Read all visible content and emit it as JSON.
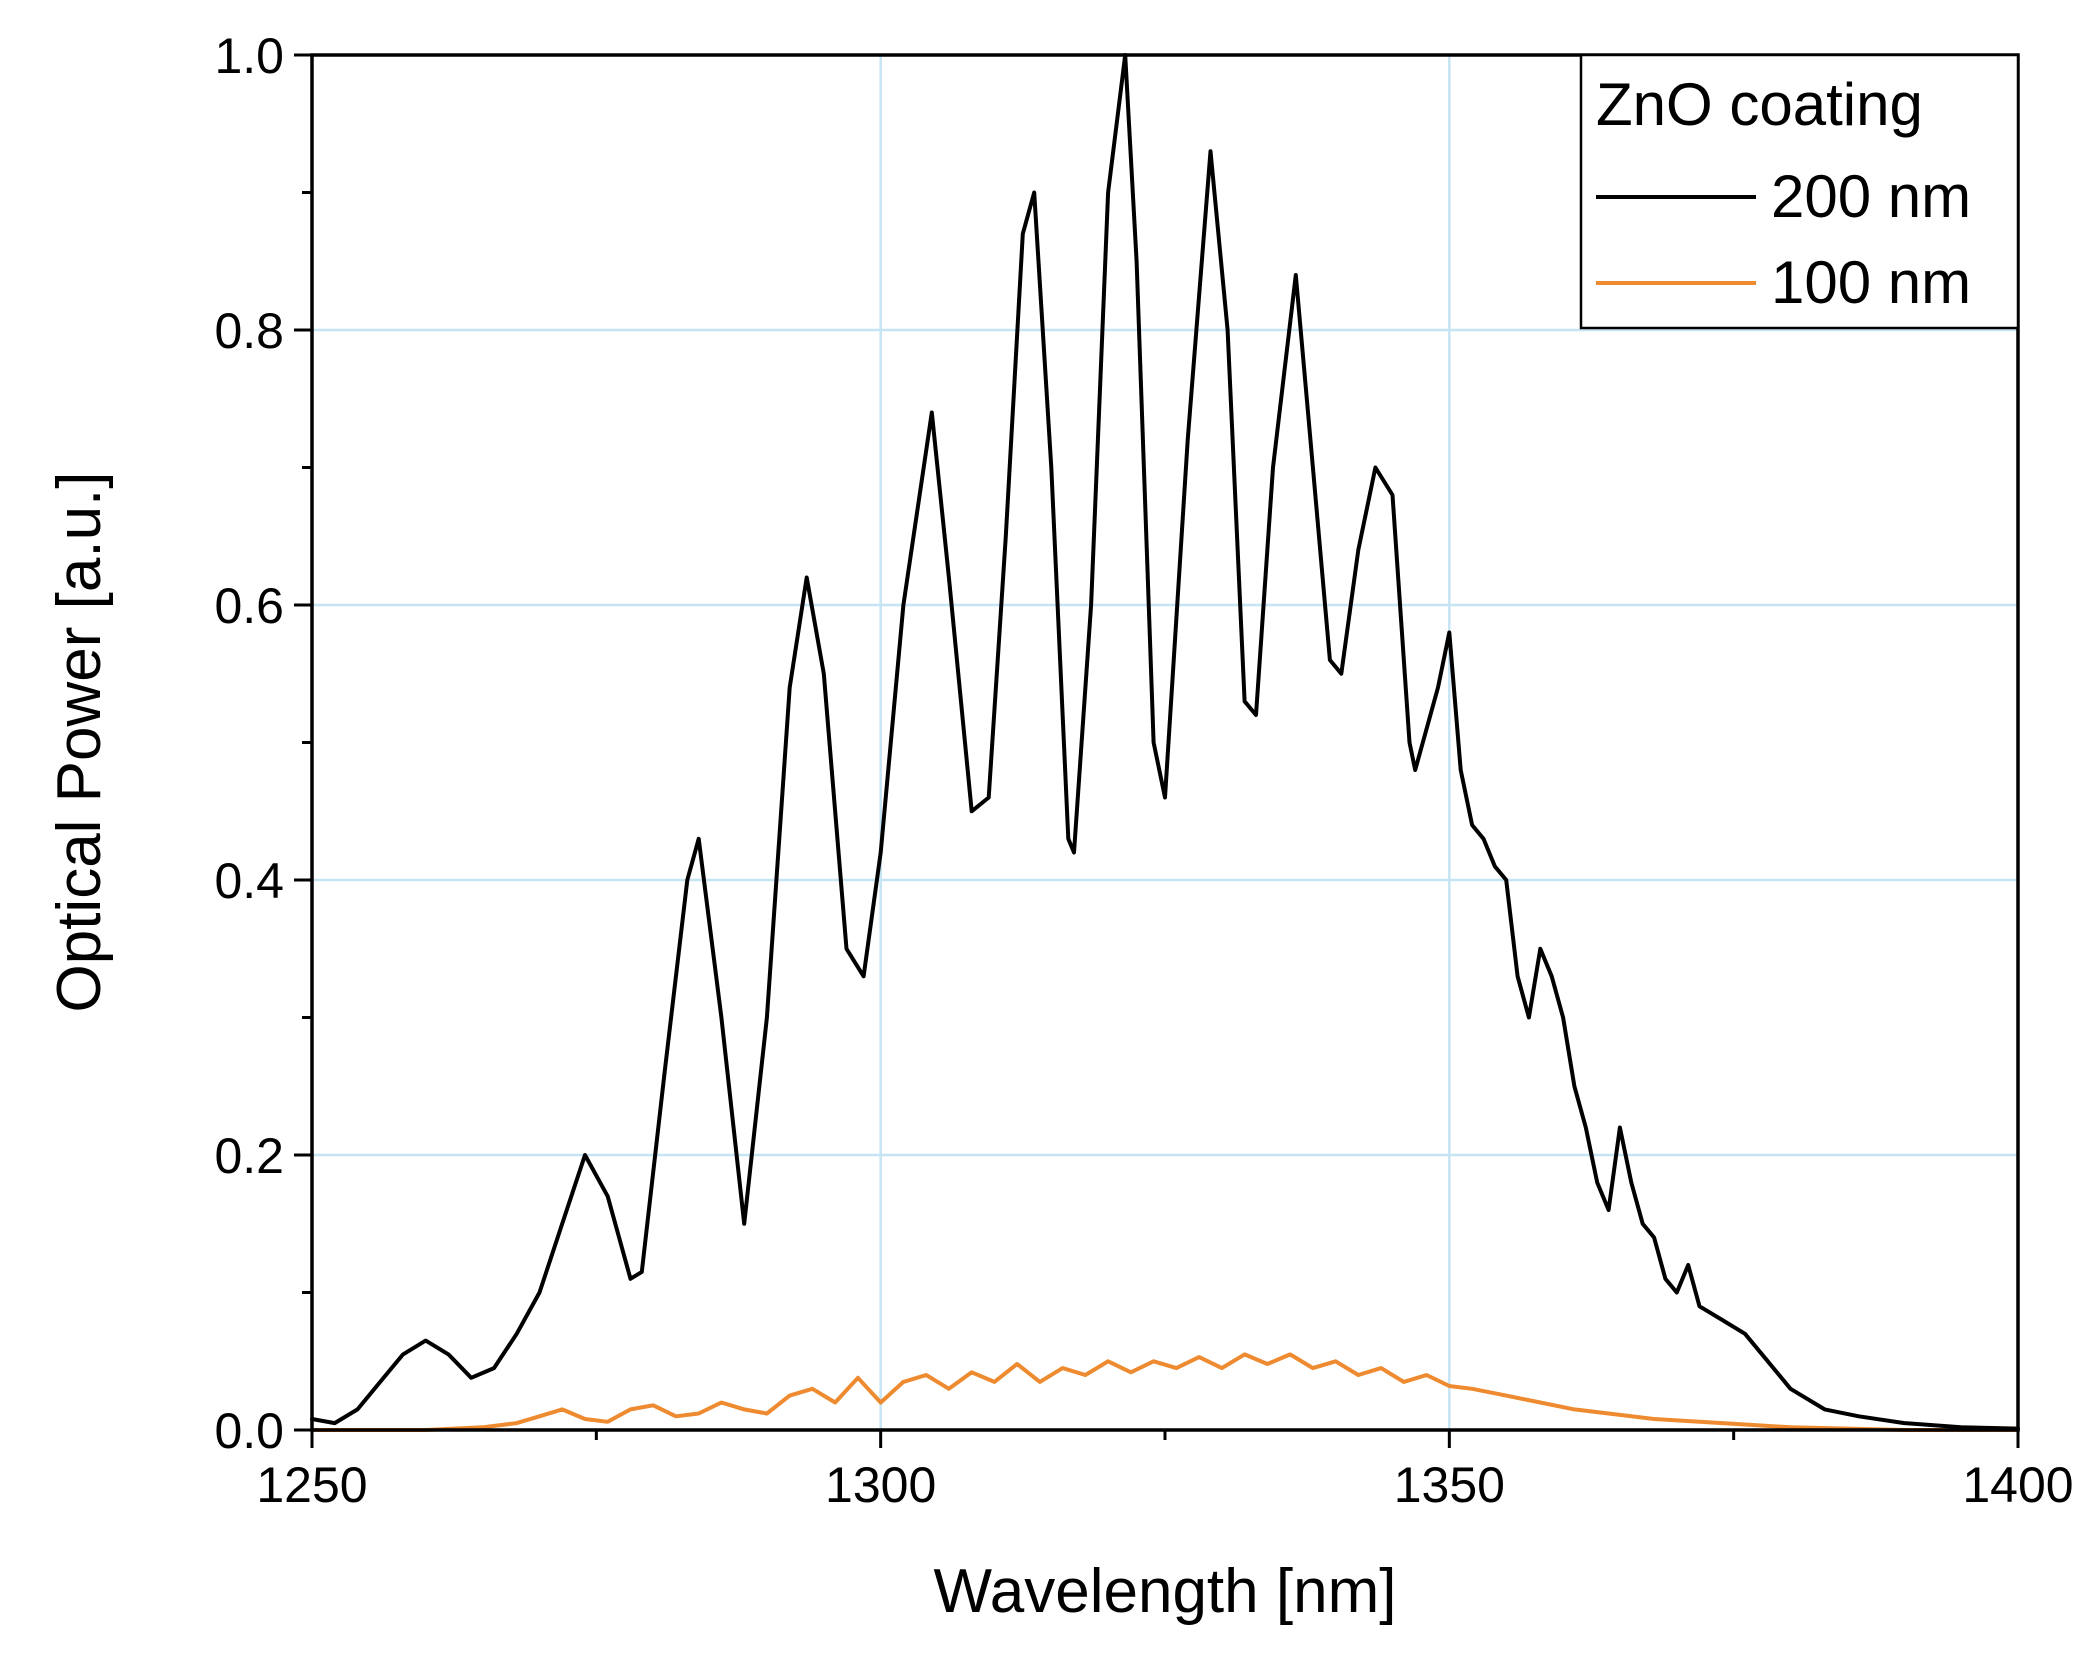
{
  "chart_data": {
    "type": "line",
    "title": "",
    "xlabel": "Wavelength [nm]",
    "ylabel": "Optical Power [a.u.]",
    "xlim": [
      1250,
      1400
    ],
    "ylim": [
      0.0,
      1.0
    ],
    "x_ticks": [
      1250,
      1300,
      1350,
      1400
    ],
    "x_tick_labels": [
      "1250",
      "1300",
      "1350",
      "1400"
    ],
    "y_ticks": [
      0.0,
      0.2,
      0.4,
      0.6,
      0.8,
      1.0
    ],
    "y_tick_labels": [
      "0.0",
      "0.2",
      "0.4",
      "0.6",
      "0.8",
      "1.0"
    ],
    "grid": true,
    "legend": {
      "title": "ZnO coating",
      "position": "top-right"
    },
    "series": [
      {
        "name": "200 nm",
        "color": "#000000",
        "x": [
          1250,
          1252,
          1254,
          1256,
          1258,
          1260,
          1262,
          1264,
          1266,
          1268,
          1270,
          1272,
          1274,
          1276,
          1278,
          1279,
          1281,
          1283,
          1284,
          1286,
          1288,
          1290,
          1292,
          1293.5,
          1295,
          1297,
          1298.5,
          1300,
          1302,
          1304.5,
          1306,
          1308,
          1309.5,
          1311,
          1312.5,
          1313.5,
          1315,
          1316.5,
          1317,
          1318.5,
          1320,
          1321.5,
          1322.5,
          1324,
          1325,
          1327,
          1329,
          1330.5,
          1332,
          1333,
          1334.5,
          1336.5,
          1338,
          1339.5,
          1340.5,
          1342,
          1343.5,
          1345,
          1346.5,
          1347,
          1349,
          1350,
          1351,
          1352,
          1353,
          1354,
          1355,
          1356,
          1357,
          1358,
          1359,
          1360,
          1361,
          1362,
          1363,
          1364,
          1365,
          1366,
          1367,
          1368,
          1369,
          1370,
          1371,
          1372,
          1374,
          1376,
          1378,
          1380,
          1383,
          1386,
          1390,
          1395,
          1400
        ],
        "values": [
          0.008,
          0.005,
          0.015,
          0.035,
          0.055,
          0.065,
          0.055,
          0.038,
          0.045,
          0.07,
          0.1,
          0.15,
          0.2,
          0.17,
          0.11,
          0.115,
          0.26,
          0.4,
          0.43,
          0.3,
          0.15,
          0.3,
          0.54,
          0.62,
          0.55,
          0.35,
          0.33,
          0.42,
          0.6,
          0.74,
          0.62,
          0.45,
          0.46,
          0.65,
          0.87,
          0.9,
          0.7,
          0.43,
          0.42,
          0.6,
          0.9,
          1.0,
          0.85,
          0.5,
          0.46,
          0.72,
          0.93,
          0.8,
          0.53,
          0.52,
          0.7,
          0.84,
          0.7,
          0.56,
          0.55,
          0.64,
          0.7,
          0.68,
          0.5,
          0.48,
          0.54,
          0.58,
          0.48,
          0.44,
          0.43,
          0.41,
          0.4,
          0.33,
          0.3,
          0.35,
          0.33,
          0.3,
          0.25,
          0.22,
          0.18,
          0.16,
          0.22,
          0.18,
          0.15,
          0.14,
          0.11,
          0.1,
          0.12,
          0.09,
          0.08,
          0.07,
          0.05,
          0.03,
          0.015,
          0.01,
          0.005,
          0.002,
          0.001
        ]
      },
      {
        "name": "100 nm",
        "color": "#ee8a2f",
        "x": [
          1250,
          1255,
          1260,
          1265,
          1268,
          1270,
          1272,
          1274,
          1276,
          1278,
          1280,
          1282,
          1284,
          1286,
          1288,
          1290,
          1292,
          1294,
          1296,
          1298,
          1300,
          1302,
          1304,
          1306,
          1308,
          1310,
          1312,
          1314,
          1316,
          1318,
          1320,
          1322,
          1324,
          1326,
          1328,
          1330,
          1332,
          1334,
          1336,
          1338,
          1340,
          1342,
          1344,
          1346,
          1348,
          1350,
          1352,
          1355,
          1358,
          1361,
          1364,
          1368,
          1372,
          1376,
          1380,
          1385,
          1390,
          1395,
          1400
        ],
        "values": [
          0.0,
          0.0,
          0.0,
          0.002,
          0.005,
          0.01,
          0.015,
          0.008,
          0.006,
          0.015,
          0.018,
          0.01,
          0.012,
          0.02,
          0.015,
          0.012,
          0.025,
          0.03,
          0.02,
          0.038,
          0.02,
          0.035,
          0.04,
          0.03,
          0.042,
          0.035,
          0.048,
          0.035,
          0.045,
          0.04,
          0.05,
          0.042,
          0.05,
          0.045,
          0.053,
          0.045,
          0.055,
          0.048,
          0.055,
          0.045,
          0.05,
          0.04,
          0.045,
          0.035,
          0.04,
          0.032,
          0.03,
          0.025,
          0.02,
          0.015,
          0.012,
          0.008,
          0.006,
          0.004,
          0.002,
          0.001,
          0.0,
          0.0,
          0.0
        ]
      }
    ]
  }
}
